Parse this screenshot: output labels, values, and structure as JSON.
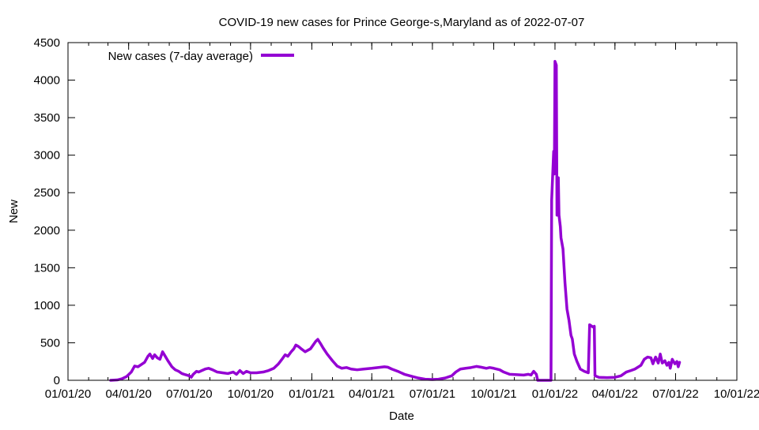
{
  "chart_data": {
    "type": "line",
    "title": "COVID-19 new cases for Prince George-s,Maryland as of 2022-07-07",
    "xlabel": "Date",
    "ylabel": "New",
    "x_range": [
      "2020-01-01",
      "2022-10-01"
    ],
    "ylim": [
      0,
      4500
    ],
    "y_ticks": [
      0,
      500,
      1000,
      1500,
      2000,
      2500,
      3000,
      3500,
      4000,
      4500
    ],
    "x_ticks": [
      {
        "date": "2020-01-01",
        "label": "01/01/20"
      },
      {
        "date": "2020-04-01",
        "label": "04/01/20"
      },
      {
        "date": "2020-07-01",
        "label": "07/01/20"
      },
      {
        "date": "2020-10-01",
        "label": "10/01/20"
      },
      {
        "date": "2021-01-01",
        "label": "01/01/21"
      },
      {
        "date": "2021-04-01",
        "label": "04/01/21"
      },
      {
        "date": "2021-07-01",
        "label": "07/01/21"
      },
      {
        "date": "2021-10-01",
        "label": "10/01/21"
      },
      {
        "date": "2022-01-01",
        "label": "01/01/22"
      },
      {
        "date": "2022-04-01",
        "label": "04/01/22"
      },
      {
        "date": "2022-07-01",
        "label": "07/01/22"
      },
      {
        "date": "2022-10-01",
        "label": "10/01/22"
      }
    ],
    "grid": false,
    "legend_position": "top-left",
    "series": [
      {
        "name": "New cases (7-day average)",
        "color": "#9400d3",
        "points": [
          [
            "2020-03-05",
            0
          ],
          [
            "2020-03-15",
            5
          ],
          [
            "2020-03-22",
            20
          ],
          [
            "2020-03-29",
            50
          ],
          [
            "2020-04-05",
            110
          ],
          [
            "2020-04-10",
            190
          ],
          [
            "2020-04-15",
            180
          ],
          [
            "2020-04-20",
            210
          ],
          [
            "2020-04-25",
            240
          ],
          [
            "2020-04-30",
            320
          ],
          [
            "2020-05-03",
            350
          ],
          [
            "2020-05-07",
            290
          ],
          [
            "2020-05-10",
            340
          ],
          [
            "2020-05-14",
            300
          ],
          [
            "2020-05-18",
            280
          ],
          [
            "2020-05-22",
            380
          ],
          [
            "2020-05-26",
            320
          ],
          [
            "2020-05-30",
            260
          ],
          [
            "2020-06-05",
            180
          ],
          [
            "2020-06-10",
            140
          ],
          [
            "2020-06-15",
            120
          ],
          [
            "2020-06-20",
            90
          ],
          [
            "2020-06-25",
            75
          ],
          [
            "2020-07-01",
            60
          ],
          [
            "2020-07-04",
            40
          ],
          [
            "2020-07-07",
            80
          ],
          [
            "2020-07-12",
            120
          ],
          [
            "2020-07-15",
            110
          ],
          [
            "2020-07-20",
            130
          ],
          [
            "2020-07-25",
            150
          ],
          [
            "2020-07-30",
            160
          ],
          [
            "2020-08-05",
            140
          ],
          [
            "2020-08-12",
            110
          ],
          [
            "2020-08-20",
            100
          ],
          [
            "2020-08-28",
            90
          ],
          [
            "2020-09-05",
            110
          ],
          [
            "2020-09-10",
            80
          ],
          [
            "2020-09-15",
            130
          ],
          [
            "2020-09-20",
            90
          ],
          [
            "2020-09-25",
            120
          ],
          [
            "2020-10-01",
            100
          ],
          [
            "2020-10-10",
            100
          ],
          [
            "2020-10-20",
            110
          ],
          [
            "2020-10-28",
            130
          ],
          [
            "2020-11-05",
            160
          ],
          [
            "2020-11-12",
            220
          ],
          [
            "2020-11-18",
            290
          ],
          [
            "2020-11-22",
            340
          ],
          [
            "2020-11-26",
            320
          ],
          [
            "2020-12-01",
            380
          ],
          [
            "2020-12-05",
            420
          ],
          [
            "2020-12-08",
            470
          ],
          [
            "2020-12-12",
            450
          ],
          [
            "2020-12-16",
            420
          ],
          [
            "2020-12-22",
            380
          ],
          [
            "2020-12-26",
            400
          ],
          [
            "2020-12-30",
            420
          ],
          [
            "2021-01-03",
            470
          ],
          [
            "2021-01-07",
            520
          ],
          [
            "2021-01-10",
            545
          ],
          [
            "2021-01-14",
            490
          ],
          [
            "2021-01-18",
            430
          ],
          [
            "2021-01-24",
            350
          ],
          [
            "2021-02-01",
            260
          ],
          [
            "2021-02-08",
            190
          ],
          [
            "2021-02-15",
            160
          ],
          [
            "2021-02-22",
            170
          ],
          [
            "2021-03-01",
            150
          ],
          [
            "2021-03-10",
            140
          ],
          [
            "2021-03-20",
            150
          ],
          [
            "2021-04-01",
            160
          ],
          [
            "2021-04-10",
            170
          ],
          [
            "2021-04-20",
            180
          ],
          [
            "2021-04-25",
            175
          ],
          [
            "2021-05-01",
            150
          ],
          [
            "2021-05-10",
            120
          ],
          [
            "2021-05-20",
            80
          ],
          [
            "2021-06-01",
            50
          ],
          [
            "2021-06-10",
            30
          ],
          [
            "2021-06-20",
            15
          ],
          [
            "2021-07-01",
            10
          ],
          [
            "2021-07-10",
            15
          ],
          [
            "2021-07-20",
            30
          ],
          [
            "2021-07-30",
            60
          ],
          [
            "2021-08-05",
            110
          ],
          [
            "2021-08-12",
            150
          ],
          [
            "2021-08-20",
            160
          ],
          [
            "2021-08-28",
            170
          ],
          [
            "2021-09-05",
            185
          ],
          [
            "2021-09-12",
            175
          ],
          [
            "2021-09-20",
            160
          ],
          [
            "2021-09-25",
            170
          ],
          [
            "2021-10-01",
            160
          ],
          [
            "2021-10-10",
            140
          ],
          [
            "2021-10-16",
            110
          ],
          [
            "2021-10-25",
            80
          ],
          [
            "2021-11-05",
            75
          ],
          [
            "2021-11-15",
            70
          ],
          [
            "2021-11-22",
            80
          ],
          [
            "2021-11-26",
            70
          ],
          [
            "2021-11-30",
            120
          ],
          [
            "2021-12-04",
            80
          ],
          [
            "2021-12-06",
            0
          ],
          [
            "2021-12-26",
            0
          ],
          [
            "2021-12-27",
            2400
          ],
          [
            "2021-12-30",
            3050
          ],
          [
            "2021-12-31",
            2750
          ],
          [
            "2022-01-01",
            4250
          ],
          [
            "2022-01-03",
            4200
          ],
          [
            "2022-01-04",
            2200
          ],
          [
            "2022-01-06",
            2700
          ],
          [
            "2022-01-07",
            2200
          ],
          [
            "2022-01-09",
            2050
          ],
          [
            "2022-01-10",
            1900
          ],
          [
            "2022-01-13",
            1750
          ],
          [
            "2022-01-16",
            1300
          ],
          [
            "2022-01-19",
            950
          ],
          [
            "2022-01-22",
            800
          ],
          [
            "2022-01-25",
            600
          ],
          [
            "2022-01-27",
            550
          ],
          [
            "2022-01-30",
            350
          ],
          [
            "2022-02-03",
            250
          ],
          [
            "2022-02-08",
            150
          ],
          [
            "2022-02-14",
            120
          ],
          [
            "2022-02-20",
            100
          ],
          [
            "2022-02-22",
            740
          ],
          [
            "2022-02-27",
            710
          ],
          [
            "2022-03-01",
            720
          ],
          [
            "2022-03-02",
            60
          ],
          [
            "2022-03-08",
            40
          ],
          [
            "2022-03-20",
            35
          ],
          [
            "2022-04-01",
            40
          ],
          [
            "2022-04-10",
            60
          ],
          [
            "2022-04-18",
            110
          ],
          [
            "2022-04-25",
            130
          ],
          [
            "2022-05-01",
            150
          ],
          [
            "2022-05-10",
            200
          ],
          [
            "2022-05-15",
            280
          ],
          [
            "2022-05-20",
            310
          ],
          [
            "2022-05-25",
            300
          ],
          [
            "2022-05-28",
            220
          ],
          [
            "2022-06-01",
            310
          ],
          [
            "2022-06-05",
            230
          ],
          [
            "2022-06-08",
            350
          ],
          [
            "2022-06-11",
            230
          ],
          [
            "2022-06-15",
            260
          ],
          [
            "2022-06-18",
            200
          ],
          [
            "2022-06-21",
            240
          ],
          [
            "2022-06-23",
            160
          ],
          [
            "2022-06-26",
            280
          ],
          [
            "2022-06-30",
            220
          ],
          [
            "2022-07-03",
            250
          ],
          [
            "2022-07-05",
            180
          ],
          [
            "2022-07-07",
            240
          ]
        ]
      }
    ]
  }
}
